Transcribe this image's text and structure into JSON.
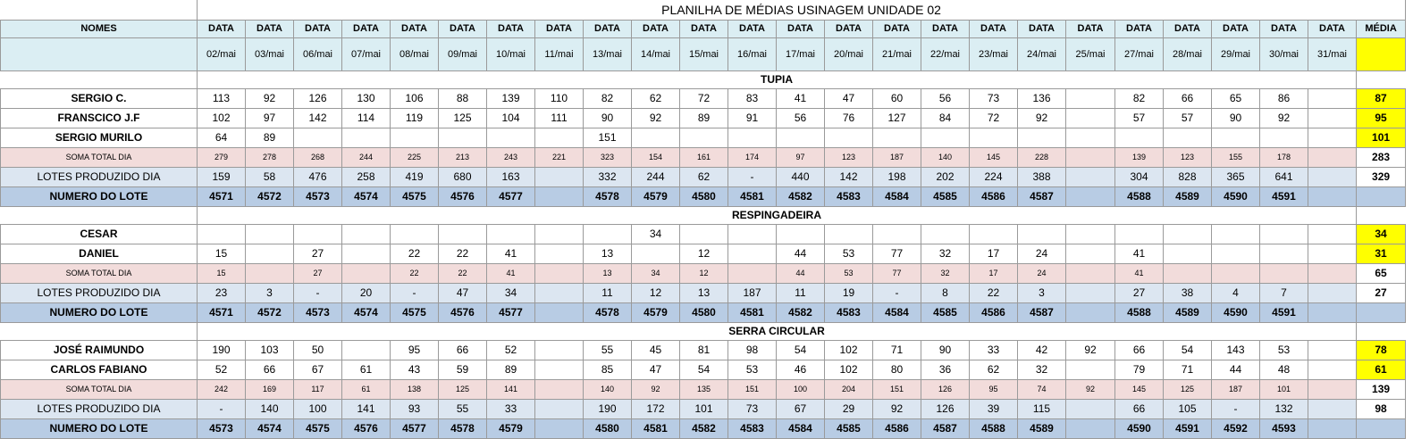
{
  "title": "PLANILHA DE MÉDIAS USINAGEM UNIDADE 02",
  "header": {
    "nomes": "NOMES",
    "data_label": "DATA",
    "media": "MÉDIA",
    "dates": [
      "02/mai",
      "03/mai",
      "06/mai",
      "07/mai",
      "08/mai",
      "09/mai",
      "10/mai",
      "11/mai",
      "13/mai",
      "14/mai",
      "15/mai",
      "16/mai",
      "17/mai",
      "20/mai",
      "21/mai",
      "22/mai",
      "23/mai",
      "24/mai",
      "25/mai",
      "27/mai",
      "28/mai",
      "29/mai",
      "30/mai",
      "31/mai"
    ]
  },
  "sections": [
    {
      "name": "TUPIA",
      "rows": [
        {
          "type": "name",
          "label": "SERGIO C.",
          "values": [
            "113",
            "92",
            "126",
            "130",
            "106",
            "88",
            "139",
            "110",
            "82",
            "62",
            "72",
            "83",
            "41",
            "47",
            "60",
            "56",
            "73",
            "136",
            "",
            "82",
            "66",
            "65",
            "86",
            ""
          ],
          "avg": "87"
        },
        {
          "type": "name",
          "label": "FRANSCICO J.F",
          "values": [
            "102",
            "97",
            "142",
            "114",
            "119",
            "125",
            "104",
            "111",
            "90",
            "92",
            "89",
            "91",
            "56",
            "76",
            "127",
            "84",
            "72",
            "92",
            "",
            "57",
            "57",
            "90",
            "92",
            ""
          ],
          "avg": "95"
        },
        {
          "type": "name",
          "label": "SERGIO MURILO",
          "values": [
            "64",
            "89",
            "",
            "",
            "",
            "",
            "",
            "",
            "151",
            "",
            "",
            "",
            "",
            "",
            "",
            "",
            "",
            "",
            "",
            "",
            "",
            "",
            "",
            ""
          ],
          "avg": "101"
        },
        {
          "type": "soma",
          "label": "SOMA TOTAL DIA",
          "values": [
            "279",
            "278",
            "268",
            "244",
            "225",
            "213",
            "243",
            "221",
            "323",
            "154",
            "161",
            "174",
            "97",
            "123",
            "187",
            "140",
            "145",
            "228",
            "",
            "139",
            "123",
            "155",
            "178",
            ""
          ],
          "avg": "283"
        },
        {
          "type": "lotes",
          "label": "LOTES PRODUZIDO DIA",
          "values": [
            "159",
            "58",
            "476",
            "258",
            "419",
            "680",
            "163",
            "",
            "332",
            "244",
            "62",
            "-",
            "440",
            "142",
            "198",
            "202",
            "224",
            "388",
            "",
            "304",
            "828",
            "365",
            "641",
            ""
          ],
          "avg": "329"
        },
        {
          "type": "numero",
          "label": "NUMERO DO LOTE",
          "values": [
            "4571",
            "4572",
            "4573",
            "4574",
            "4575",
            "4576",
            "4577",
            "",
            "4578",
            "4579",
            "4580",
            "4581",
            "4582",
            "4583",
            "4584",
            "4585",
            "4586",
            "4587",
            "",
            "4588",
            "4589",
            "4590",
            "4591",
            ""
          ],
          "avg": ""
        }
      ]
    },
    {
      "name": "RESPINGADEIRA",
      "rows": [
        {
          "type": "name",
          "label": "CESAR",
          "values": [
            "",
            "",
            "",
            "",
            "",
            "",
            "",
            "",
            "",
            "34",
            "",
            "",
            "",
            "",
            "",
            "",
            "",
            "",
            "",
            "",
            "",
            "",
            "",
            ""
          ],
          "avg": "34"
        },
        {
          "type": "name",
          "label": "DANIEL",
          "values": [
            "15",
            "",
            "27",
            "",
            "22",
            "22",
            "41",
            "",
            "13",
            "",
            "12",
            "",
            "44",
            "53",
            "77",
            "32",
            "17",
            "24",
            "",
            "41",
            "",
            "",
            "",
            ""
          ],
          "avg": "31"
        },
        {
          "type": "soma",
          "label": "SOMA TOTAL DIA",
          "values": [
            "15",
            "",
            "27",
            "",
            "22",
            "22",
            "41",
            "",
            "13",
            "34",
            "12",
            "",
            "44",
            "53",
            "77",
            "32",
            "17",
            "24",
            "",
            "41",
            "",
            "",
            "",
            ""
          ],
          "avg": "65"
        },
        {
          "type": "lotes",
          "label": "LOTES PRODUZIDO DIA",
          "values": [
            "23",
            "3",
            "-",
            "20",
            "-",
            "47",
            "34",
            "",
            "11",
            "12",
            "13",
            "187",
            "11",
            "19",
            "-",
            "8",
            "22",
            "3",
            "",
            "27",
            "38",
            "4",
            "7",
            ""
          ],
          "avg": "27"
        },
        {
          "type": "numero",
          "label": "NUMERO DO LOTE",
          "values": [
            "4571",
            "4572",
            "4573",
            "4574",
            "4575",
            "4576",
            "4577",
            "",
            "4578",
            "4579",
            "4580",
            "4581",
            "4582",
            "4583",
            "4584",
            "4585",
            "4586",
            "4587",
            "",
            "4588",
            "4589",
            "4590",
            "4591",
            ""
          ],
          "avg": ""
        }
      ]
    },
    {
      "name": "SERRA CIRCULAR",
      "rows": [
        {
          "type": "name",
          "label": "JOSÉ RAIMUNDO",
          "values": [
            "190",
            "103",
            "50",
            "",
            "95",
            "66",
            "52",
            "",
            "55",
            "45",
            "81",
            "98",
            "54",
            "102",
            "71",
            "90",
            "33",
            "42",
            "92",
            "66",
            "54",
            "143",
            "53",
            ""
          ],
          "avg": "78"
        },
        {
          "type": "name",
          "label": "CARLOS FABIANO",
          "values": [
            "52",
            "66",
            "67",
            "61",
            "43",
            "59",
            "89",
            "",
            "85",
            "47",
            "54",
            "53",
            "46",
            "102",
            "80",
            "36",
            "62",
            "32",
            "",
            "79",
            "71",
            "44",
            "48",
            ""
          ],
          "avg": "61"
        },
        {
          "type": "soma",
          "label": "SOMA TOTAL DIA",
          "values": [
            "242",
            "169",
            "117",
            "61",
            "138",
            "125",
            "141",
            "",
            "140",
            "92",
            "135",
            "151",
            "100",
            "204",
            "151",
            "126",
            "95",
            "74",
            "92",
            "145",
            "125",
            "187",
            "101",
            ""
          ],
          "avg": "139"
        },
        {
          "type": "lotes",
          "label": "LOTES PRODUZIDO DIA",
          "values": [
            "-",
            "140",
            "100",
            "141",
            "93",
            "55",
            "33",
            "",
            "190",
            "172",
            "101",
            "73",
            "67",
            "29",
            "92",
            "126",
            "39",
            "115",
            "",
            "66",
            "105",
            "-",
            "132",
            ""
          ],
          "avg": "98"
        },
        {
          "type": "numero",
          "label": "NUMERO DO LOTE",
          "values": [
            "4573",
            "4574",
            "4575",
            "4576",
            "4577",
            "4578",
            "4579",
            "",
            "4580",
            "4581",
            "4582",
            "4583",
            "4584",
            "4585",
            "4586",
            "4587",
            "4588",
            "4589",
            "",
            "4590",
            "4591",
            "4592",
            "4593",
            ""
          ],
          "avg": ""
        }
      ]
    }
  ]
}
